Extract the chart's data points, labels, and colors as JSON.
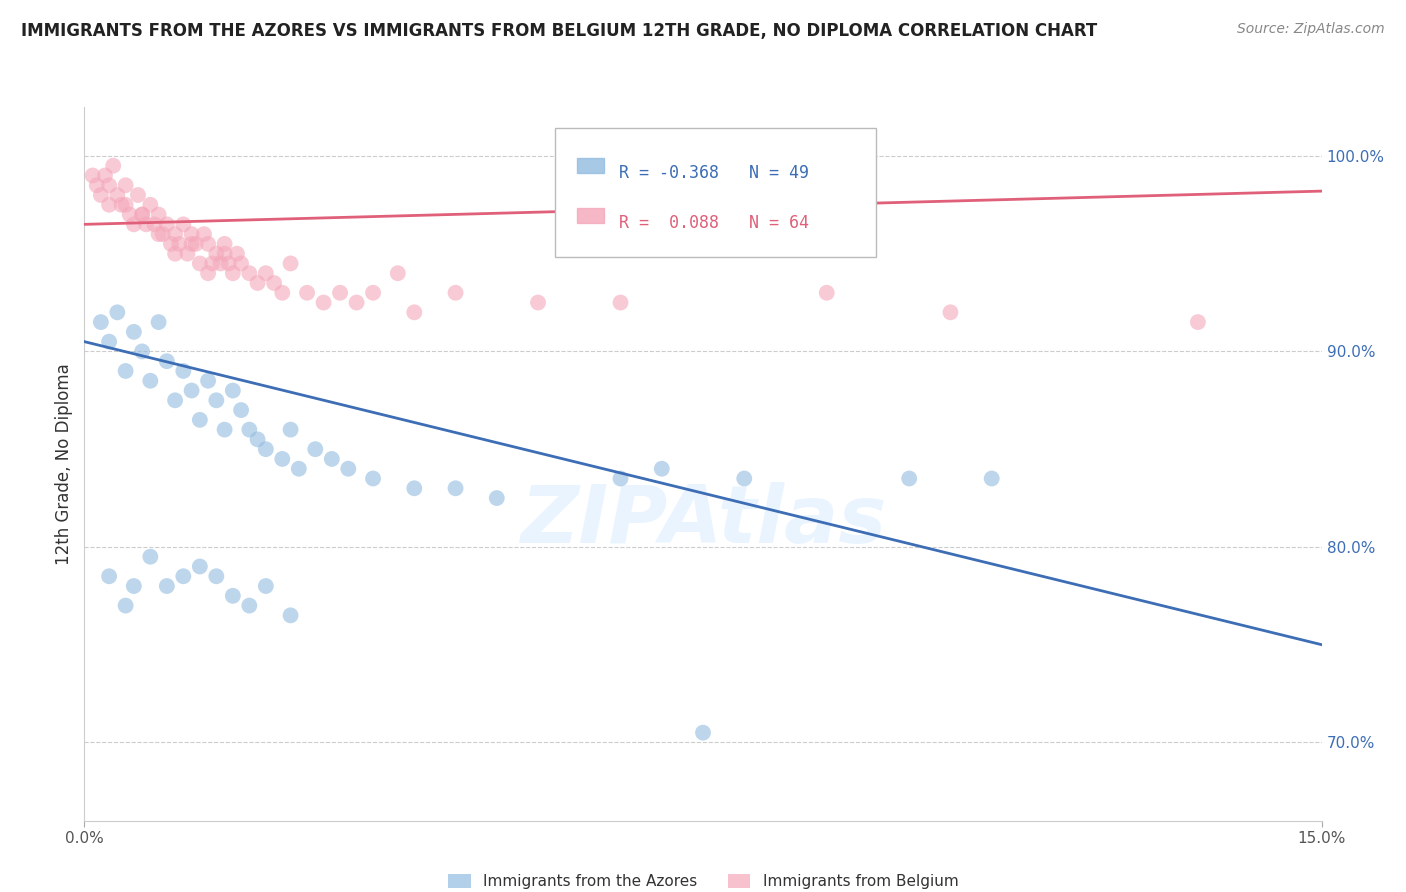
{
  "title": "IMMIGRANTS FROM THE AZORES VS IMMIGRANTS FROM BELGIUM 12TH GRADE, NO DIPLOMA CORRELATION CHART",
  "source": "Source: ZipAtlas.com",
  "ylabel": "12th Grade, No Diploma",
  "y_ticks": [
    70.0,
    80.0,
    90.0,
    100.0
  ],
  "y_tick_labels": [
    "70.0%",
    "80.0%",
    "90.0%",
    "100.0%"
  ],
  "xmin": 0.0,
  "xmax": 15.0,
  "ymin": 66.0,
  "ymax": 102.5,
  "blue_R": -0.368,
  "blue_N": 49,
  "pink_R": 0.088,
  "pink_N": 64,
  "blue_color": "#92bce0",
  "pink_color": "#f4a7b9",
  "blue_line_color": "#3d6eb5",
  "pink_line_color": "#e0607a",
  "legend_label_blue": "Immigrants from the Azores",
  "legend_label_pink": "Immigrants from Belgium",
  "watermark": "ZIPAtlas",
  "blue_scatter_x": [
    0.2,
    0.3,
    0.4,
    0.5,
    0.6,
    0.7,
    0.8,
    0.9,
    1.0,
    1.1,
    1.2,
    1.3,
    1.4,
    1.5,
    1.6,
    1.7,
    1.8,
    1.9,
    2.0,
    2.1,
    2.2,
    2.4,
    2.5,
    2.6,
    2.8,
    3.0,
    3.2,
    3.5,
    4.0,
    4.5,
    5.0,
    6.5,
    7.0,
    8.0,
    10.0,
    11.0,
    0.3,
    0.5,
    0.6,
    0.8,
    1.0,
    1.2,
    1.4,
    1.6,
    1.8,
    2.0,
    2.2,
    2.5,
    7.5
  ],
  "blue_scatter_y": [
    91.5,
    90.5,
    92.0,
    89.0,
    91.0,
    90.0,
    88.5,
    91.5,
    89.5,
    87.5,
    89.0,
    88.0,
    86.5,
    88.5,
    87.5,
    86.0,
    88.0,
    87.0,
    86.0,
    85.5,
    85.0,
    84.5,
    86.0,
    84.0,
    85.0,
    84.5,
    84.0,
    83.5,
    83.0,
    83.0,
    82.5,
    83.5,
    84.0,
    83.5,
    83.5,
    83.5,
    78.5,
    77.0,
    78.0,
    79.5,
    78.0,
    78.5,
    79.0,
    78.5,
    77.5,
    77.0,
    78.0,
    76.5,
    70.5
  ],
  "pink_scatter_x": [
    0.1,
    0.15,
    0.2,
    0.25,
    0.3,
    0.35,
    0.4,
    0.45,
    0.5,
    0.55,
    0.6,
    0.65,
    0.7,
    0.75,
    0.8,
    0.85,
    0.9,
    0.95,
    1.0,
    1.05,
    1.1,
    1.15,
    1.2,
    1.25,
    1.3,
    1.35,
    1.4,
    1.45,
    1.5,
    1.55,
    1.6,
    1.65,
    1.7,
    1.75,
    1.8,
    1.85,
    1.9,
    2.0,
    2.1,
    2.2,
    2.3,
    2.4,
    2.5,
    2.7,
    2.9,
    3.1,
    3.3,
    3.5,
    4.0,
    4.5,
    5.5,
    6.5,
    3.8,
    9.0,
    10.5,
    13.5,
    0.3,
    0.5,
    0.7,
    0.9,
    1.1,
    1.3,
    1.5,
    1.7
  ],
  "pink_scatter_y": [
    99.0,
    98.5,
    98.0,
    99.0,
    97.5,
    99.5,
    98.0,
    97.5,
    98.5,
    97.0,
    96.5,
    98.0,
    97.0,
    96.5,
    97.5,
    96.5,
    97.0,
    96.0,
    96.5,
    95.5,
    96.0,
    95.5,
    96.5,
    95.0,
    96.0,
    95.5,
    94.5,
    96.0,
    95.5,
    94.5,
    95.0,
    94.5,
    95.5,
    94.5,
    94.0,
    95.0,
    94.5,
    94.0,
    93.5,
    94.0,
    93.5,
    93.0,
    94.5,
    93.0,
    92.5,
    93.0,
    92.5,
    93.0,
    92.0,
    93.0,
    92.5,
    92.5,
    94.0,
    93.0,
    92.0,
    91.5,
    98.5,
    97.5,
    97.0,
    96.0,
    95.0,
    95.5,
    94.0,
    95.0
  ],
  "blue_trendline_x": [
    0.0,
    15.0
  ],
  "blue_trendline_y": [
    90.5,
    75.0
  ],
  "pink_trendline_x": [
    0.0,
    15.0
  ],
  "pink_trendline_y": [
    96.5,
    98.2
  ]
}
